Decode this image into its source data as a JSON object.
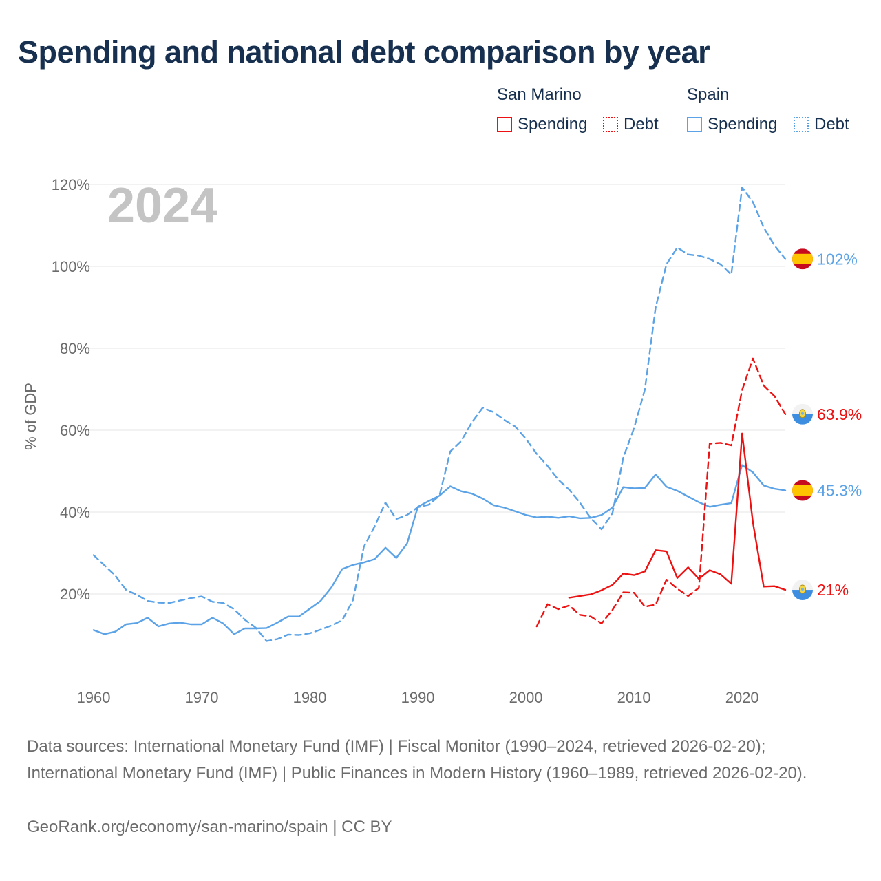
{
  "title": "Spending and national debt comparison by year",
  "colors": {
    "san_marino": "#ee1111",
    "spain": "#5ba3e6",
    "title": "#17304f",
    "grid": "#e4e4e4",
    "axis_text": "#6b6b6b",
    "year_mark": "#c4c4c4"
  },
  "legend": {
    "groups": [
      {
        "name": "San Marino",
        "spending_label": "Spending",
        "debt_label": "Debt"
      },
      {
        "name": "Spain",
        "spending_label": "Spending",
        "debt_label": "Debt"
      }
    ]
  },
  "year_mark": "2024",
  "end_labels": [
    {
      "text": "102%",
      "country": "Spain",
      "icon": "spain-flag-icon"
    },
    {
      "text": "63.9%",
      "country": "San Marino",
      "icon": "san-marino-flag-icon"
    },
    {
      "text": "45.3%",
      "country": "Spain",
      "icon": "spain-flag-icon"
    },
    {
      "text": "21%",
      "country": "San Marino",
      "icon": "san-marino-flag-icon"
    }
  ],
  "footer": {
    "sources": "Data sources: International Monetary Fund (IMF) | Fiscal Monitor (1990–2024, retrieved 2026-02-20); International Monetary Fund (IMF) | Public Finances in Modern History (1960–1989, retrieved 2026-02-20).",
    "credit": "GeoRank.org/economy/san-marino/spain | CC BY"
  },
  "chart_data": {
    "type": "line",
    "title": "Spending and national debt comparison by year",
    "xlabel": "",
    "ylabel": "% of GDP",
    "xlim": [
      1960,
      2024
    ],
    "ylim": [
      0,
      120
    ],
    "xticks": [
      1960,
      1970,
      1980,
      1990,
      2000,
      2010,
      2020
    ],
    "yticks": [
      20,
      40,
      60,
      80,
      100,
      120
    ],
    "ytick_labels": [
      "20%",
      "40%",
      "60%",
      "80%",
      "100%",
      "120%"
    ],
    "grid": true,
    "series": [
      {
        "name": "Spain Debt",
        "country": "Spain",
        "kind": "debt",
        "style": "dashed",
        "x": [
          1960,
          1961,
          1962,
          1963,
          1964,
          1965,
          1966,
          1967,
          1968,
          1969,
          1970,
          1971,
          1972,
          1973,
          1974,
          1975,
          1976,
          1977,
          1978,
          1979,
          1980,
          1981,
          1982,
          1983,
          1984,
          1985,
          1986,
          1987,
          1988,
          1989,
          1990,
          1991,
          1992,
          1993,
          1994,
          1995,
          1996,
          1997,
          1998,
          1999,
          2000,
          2001,
          2002,
          2003,
          2004,
          2005,
          2006,
          2007,
          2008,
          2009,
          2010,
          2011,
          2012,
          2013,
          2014,
          2015,
          2016,
          2017,
          2018,
          2019,
          2020,
          2021,
          2022,
          2023,
          2024
        ],
        "values": [
          29.5,
          27,
          24.5,
          21,
          19.8,
          18.3,
          17.9,
          17.8,
          18.4,
          19,
          19.4,
          18.1,
          17.8,
          16.3,
          13.7,
          11.8,
          8.5,
          9,
          10.1,
          10,
          10.4,
          11.3,
          12.3,
          13.6,
          18.5,
          31.5,
          36.5,
          42.3,
          38.3,
          39.3,
          41.2,
          41.8,
          44,
          54.8,
          57.3,
          61.9,
          65.5,
          64.4,
          62.5,
          60.9,
          57.9,
          54.2,
          51.3,
          47.9,
          45.5,
          42.3,
          38.5,
          35.8,
          39.7,
          53.3,
          60.5,
          69.9,
          90,
          100.5,
          104.6,
          102.9,
          102.6,
          101.8,
          100.5,
          98,
          119.3,
          115.7,
          109.5,
          105.1,
          101.8
        ]
      },
      {
        "name": "Spain Spending",
        "country": "Spain",
        "kind": "spending",
        "style": "solid",
        "x": [
          1960,
          1961,
          1962,
          1963,
          1964,
          1965,
          1966,
          1967,
          1968,
          1969,
          1970,
          1971,
          1972,
          1973,
          1974,
          1975,
          1976,
          1977,
          1978,
          1979,
          1980,
          1981,
          1982,
          1983,
          1984,
          1985,
          1986,
          1987,
          1988,
          1989,
          1990,
          1991,
          1992,
          1993,
          1994,
          1995,
          1996,
          1997,
          1998,
          1999,
          2000,
          2001,
          2002,
          2003,
          2004,
          2005,
          2006,
          2007,
          2008,
          2009,
          2010,
          2011,
          2012,
          2013,
          2014,
          2015,
          2016,
          2017,
          2018,
          2019,
          2020,
          2021,
          2022,
          2023,
          2024
        ],
        "values": [
          11.2,
          10.2,
          10.8,
          12.6,
          12.9,
          14.2,
          12.1,
          12.8,
          13,
          12.6,
          12.6,
          14.2,
          12.8,
          10.2,
          11.6,
          11.6,
          11.7,
          13,
          14.5,
          14.5,
          16.4,
          18.3,
          21.6,
          26.1,
          27.1,
          27.7,
          28.5,
          31.3,
          28.8,
          32.3,
          41.3,
          42.7,
          44,
          46.3,
          45.1,
          44.5,
          43.3,
          41.7,
          41.1,
          40.2,
          39.3,
          38.7,
          38.9,
          38.6,
          39,
          38.5,
          38.6,
          39.3,
          41.1,
          46.1,
          45.8,
          45.9,
          49.2,
          46.2,
          45.2,
          43.8,
          42.4,
          41.3,
          41.8,
          42.2,
          51.5,
          49.7,
          46.5,
          45.7,
          45.3
        ]
      },
      {
        "name": "San Marino Debt",
        "country": "San Marino",
        "kind": "debt",
        "style": "dashed",
        "x": [
          2001,
          2002,
          2003,
          2004,
          2005,
          2006,
          2007,
          2008,
          2009,
          2010,
          2011,
          2012,
          2013,
          2014,
          2015,
          2016,
          2017,
          2018,
          2019,
          2020,
          2021,
          2022,
          2023,
          2024
        ],
        "values": [
          12.1,
          17.5,
          16.3,
          17.2,
          14.9,
          14.5,
          12.8,
          16.1,
          20.4,
          20.3,
          16.9,
          17.4,
          23.5,
          21.3,
          19.5,
          21.5,
          56.7,
          56.9,
          56.3,
          69.8,
          77.5,
          70.9,
          68.3,
          63.9
        ]
      },
      {
        "name": "San Marino Spending",
        "country": "San Marino",
        "kind": "spending",
        "style": "solid",
        "x": [
          2004,
          2005,
          2006,
          2007,
          2008,
          2009,
          2010,
          2011,
          2012,
          2013,
          2014,
          2015,
          2016,
          2017,
          2018,
          2019,
          2020,
          2021,
          2022,
          2023,
          2024
        ],
        "values": [
          19.1,
          19.5,
          19.9,
          20.9,
          22.2,
          25,
          24.6,
          25.5,
          30.7,
          30.4,
          23.9,
          26.5,
          23.7,
          25.8,
          24.8,
          22.5,
          59.2,
          37.5,
          21.8,
          21.9,
          21
        ]
      }
    ]
  }
}
